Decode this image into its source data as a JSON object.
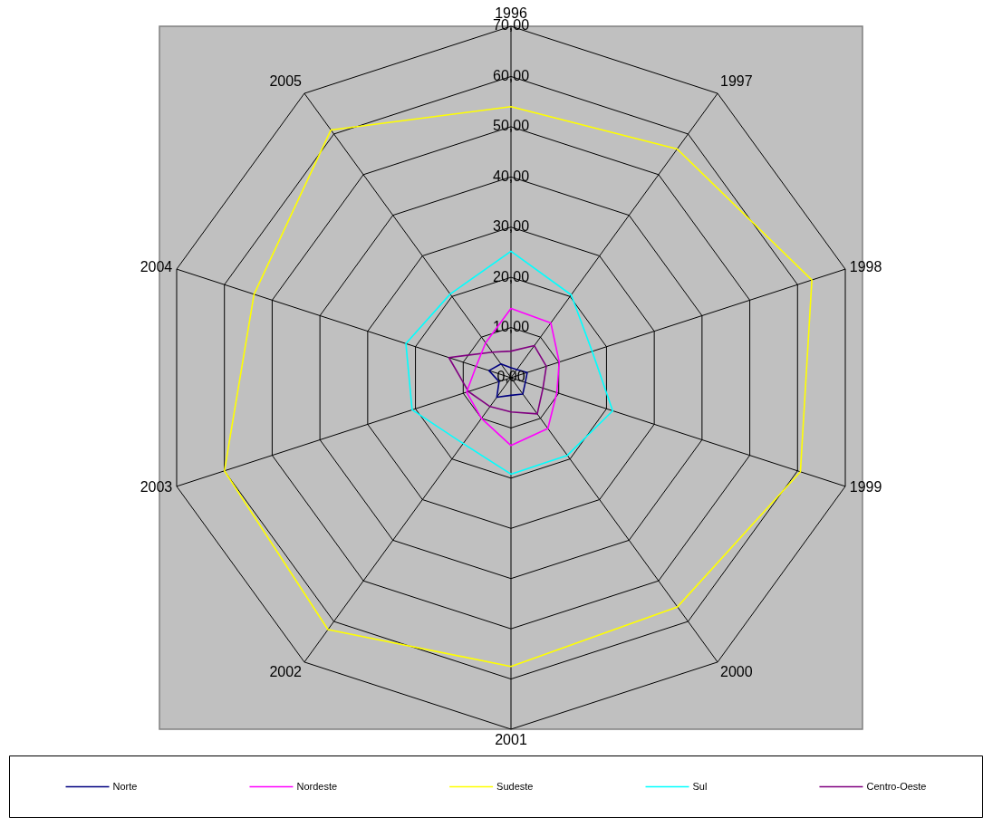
{
  "chart_data": {
    "type": "radar",
    "categories": [
      "1996",
      "1997",
      "1998",
      "1999",
      "2000",
      "2001",
      "2002",
      "2003",
      "2004",
      "2005"
    ],
    "series": [
      {
        "name": "Norte",
        "color": "#000080",
        "values": [
          2.0,
          2.0,
          3.4,
          3.0,
          4.0,
          3.5,
          4.8,
          2.5,
          4.6,
          3.4
        ]
      },
      {
        "name": "Nordeste",
        "color": "#ff00ff",
        "values": [
          13.8,
          13.5,
          10.1,
          9.6,
          12.5,
          13.5,
          10.0,
          9.3,
          7.3,
          8.6
        ]
      },
      {
        "name": "Sudeste",
        "color": "#ffff00",
        "values": [
          54.0,
          56.3,
          63.0,
          60.6,
          56.4,
          57.5,
          62.0,
          60.0,
          53.8,
          61.0
        ]
      },
      {
        "name": "Sul",
        "color": "#00ffff",
        "values": [
          25.2,
          20.4,
          17.0,
          21.3,
          19.1,
          19.2,
          16.2,
          20.7,
          22.0,
          20.6
        ]
      },
      {
        "name": "Centro-Oeste",
        "color": "#800080",
        "values": [
          5.3,
          7.9,
          7.4,
          6.7,
          8.9,
          6.8,
          7.1,
          8.9,
          13.0,
          6.3
        ]
      }
    ],
    "ylim": [
      0,
      70
    ],
    "yticks": [
      {
        "value": 0,
        "label": "0,00"
      },
      {
        "value": 10,
        "label": "10,00"
      },
      {
        "value": 20,
        "label": "20,00"
      },
      {
        "value": 30,
        "label": "30,00"
      },
      {
        "value": 40,
        "label": "40,00"
      },
      {
        "value": 50,
        "label": "50,00"
      },
      {
        "value": 60,
        "label": "60,00"
      },
      {
        "value": 70,
        "label": "70,00"
      }
    ],
    "grid": true,
    "legend": "bottom"
  }
}
